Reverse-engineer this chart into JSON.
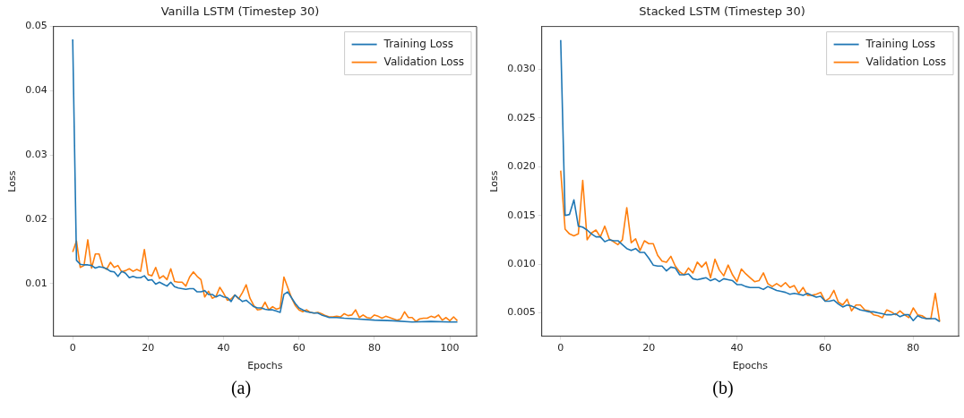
{
  "chart_data": [
    {
      "type": "line",
      "title": "Vanilla LSTM (Timestep 30)",
      "xlabel": "Epochs",
      "ylabel": "Loss",
      "xlim": [
        -5.1,
        107.1
      ],
      "xticks": [
        0,
        20,
        40,
        60,
        80,
        100
      ],
      "ylim": [
        0.0018,
        0.05
      ],
      "yticks": [
        0.01,
        0.02,
        0.03,
        0.04,
        0.05
      ],
      "grid": false,
      "legend": "top right",
      "marker": "none",
      "line_style": "solid",
      "annotations": [
        "(a)"
      ],
      "series": [
        {
          "name": "Training Loss",
          "color": "#1f77b4",
          "x": [
            0,
            1,
            2,
            3,
            4,
            5,
            6,
            7,
            8,
            9,
            10,
            11,
            12,
            13,
            14,
            15,
            16,
            17,
            18,
            19,
            20,
            21,
            22,
            23,
            24,
            25,
            26,
            27,
            28,
            29,
            30,
            31,
            32,
            33,
            34,
            35,
            36,
            37,
            38,
            39,
            40,
            41,
            42,
            43,
            44,
            45,
            46,
            47,
            48,
            49,
            50,
            51,
            52,
            53,
            54,
            55,
            56,
            57,
            58,
            59,
            60,
            61,
            62,
            63,
            64,
            65,
            66,
            67,
            68,
            70,
            72,
            75,
            80,
            85,
            90,
            95,
            100,
            102
          ],
          "values": [
            0.048,
            0.0136,
            0.013,
            0.0129,
            0.0129,
            0.0128,
            0.0124,
            0.0126,
            0.0125,
            0.0123,
            0.0119,
            0.0118,
            0.0111,
            0.0119,
            0.0116,
            0.0109,
            0.0111,
            0.0109,
            0.0109,
            0.0112,
            0.0105,
            0.0106,
            0.0099,
            0.0102,
            0.0099,
            0.0096,
            0.0102,
            0.0095,
            0.0093,
            0.0092,
            0.0091,
            0.0092,
            0.0092,
            0.0087,
            0.0087,
            0.0089,
            0.0083,
            0.0083,
            0.0079,
            0.0082,
            0.0079,
            0.0078,
            0.0072,
            0.0082,
            0.0077,
            0.0072,
            0.0074,
            0.0069,
            0.0064,
            0.0062,
            0.0062,
            0.006,
            0.0059,
            0.0059,
            0.0057,
            0.0055,
            0.0083,
            0.0087,
            0.0078,
            0.0069,
            0.0062,
            0.0059,
            0.0056,
            0.0055,
            0.0054,
            0.0054,
            0.0051,
            0.0049,
            0.0047,
            0.0047,
            0.0046,
            0.0045,
            0.0043,
            0.0042,
            0.004,
            0.0041,
            0.004,
            0.004
          ]
        },
        {
          "name": "Validation Loss",
          "color": "#ff7f0e",
          "x": [
            0,
            1,
            2,
            3,
            4,
            5,
            6,
            7,
            8,
            9,
            10,
            11,
            12,
            13,
            14,
            15,
            16,
            17,
            18,
            19,
            20,
            21,
            22,
            23,
            24,
            25,
            26,
            27,
            28,
            29,
            30,
            31,
            32,
            33,
            34,
            35,
            36,
            37,
            38,
            39,
            40,
            41,
            42,
            43,
            44,
            45,
            46,
            47,
            48,
            49,
            50,
            51,
            52,
            53,
            54,
            55,
            56,
            57,
            58,
            59,
            60,
            61,
            62,
            63,
            64,
            65,
            66,
            67,
            68,
            69,
            70,
            71,
            72,
            73,
            74,
            75,
            76,
            77,
            78,
            79,
            80,
            81,
            82,
            83,
            84,
            85,
            86,
            87,
            88,
            89,
            90,
            91,
            92,
            93,
            94,
            95,
            96,
            97,
            98,
            99,
            100,
            101,
            102
          ],
          "values": [
            0.0149,
            0.0166,
            0.0125,
            0.0128,
            0.0168,
            0.0124,
            0.0146,
            0.0146,
            0.0126,
            0.0122,
            0.0133,
            0.0125,
            0.0128,
            0.0118,
            0.012,
            0.0123,
            0.0119,
            0.0122,
            0.0119,
            0.0153,
            0.0114,
            0.0112,
            0.0125,
            0.0108,
            0.0112,
            0.0106,
            0.0123,
            0.0103,
            0.0102,
            0.0102,
            0.0096,
            0.011,
            0.0118,
            0.0111,
            0.0106,
            0.0079,
            0.0088,
            0.0077,
            0.008,
            0.0094,
            0.0085,
            0.0074,
            0.0076,
            0.0082,
            0.0076,
            0.0086,
            0.0098,
            0.0077,
            0.0066,
            0.0059,
            0.006,
            0.0071,
            0.0059,
            0.0064,
            0.006,
            0.0062,
            0.011,
            0.0094,
            0.0078,
            0.0066,
            0.0059,
            0.0056,
            0.0059,
            0.0055,
            0.0054,
            0.0055,
            0.0053,
            0.005,
            0.0048,
            0.0048,
            0.0049,
            0.0048,
            0.0053,
            0.005,
            0.0051,
            0.0059,
            0.0047,
            0.0051,
            0.0047,
            0.0046,
            0.0051,
            0.0049,
            0.0046,
            0.0049,
            0.0047,
            0.0045,
            0.0043,
            0.0045,
            0.0056,
            0.0047,
            0.0047,
            0.0041,
            0.0045,
            0.0046,
            0.0046,
            0.0049,
            0.0047,
            0.0051,
            0.0043,
            0.0047,
            0.0042,
            0.0048,
            0.0042
          ]
        }
      ]
    },
    {
      "type": "line",
      "title": "Stacked LSTM (Timestep 30)",
      "xlabel": "Epochs",
      "ylabel": "Loss",
      "xlim": [
        -4.3,
        90.3
      ],
      "xticks": [
        0,
        20,
        40,
        60,
        80
      ],
      "ylim": [
        0.0026,
        0.0344
      ],
      "yticks": [
        {
          "value": 0.005,
          "label": "0.005"
        },
        {
          "value": 0.01,
          "label": "0.010"
        },
        {
          "value": 0.015,
          "label": "0.015"
        },
        {
          "value": 0.02,
          "label": "0.020"
        },
        {
          "value": 0.025,
          "label": "0.025"
        },
        {
          "value": 0.03,
          "label": "0.030"
        }
      ],
      "grid": false,
      "legend": "top right",
      "marker": "none",
      "line_style": "solid",
      "annotations": [
        "(b)"
      ],
      "series": [
        {
          "name": "Training Loss",
          "color": "#1f77b4",
          "x": [
            0,
            1,
            2,
            3,
            4,
            5,
            6,
            7,
            8,
            9,
            10,
            11,
            12,
            13,
            14,
            15,
            16,
            17,
            18,
            19,
            20,
            21,
            22,
            23,
            24,
            25,
            26,
            27,
            28,
            29,
            30,
            31,
            32,
            33,
            34,
            35,
            36,
            37,
            38,
            39,
            40,
            41,
            42,
            43,
            44,
            45,
            46,
            47,
            48,
            49,
            50,
            51,
            52,
            53,
            54,
            55,
            56,
            57,
            58,
            59,
            60,
            61,
            62,
            63,
            64,
            65,
            66,
            67,
            68,
            69,
            70,
            71,
            72,
            73,
            74,
            75,
            76,
            77,
            78,
            79,
            80,
            81,
            82,
            83,
            84,
            85,
            86
          ],
          "values": [
            0.033,
            0.015,
            0.0151,
            0.0166,
            0.0139,
            0.0138,
            0.0135,
            0.0131,
            0.0128,
            0.0128,
            0.0123,
            0.0125,
            0.0124,
            0.0124,
            0.012,
            0.0116,
            0.0114,
            0.0116,
            0.0112,
            0.0112,
            0.0106,
            0.0099,
            0.0098,
            0.0098,
            0.0093,
            0.0097,
            0.0096,
            0.0089,
            0.0089,
            0.009,
            0.0085,
            0.0084,
            0.0085,
            0.0086,
            0.0083,
            0.0085,
            0.0082,
            0.0085,
            0.0084,
            0.0083,
            0.0079,
            0.0079,
            0.0077,
            0.0076,
            0.0076,
            0.0076,
            0.0074,
            0.0077,
            0.0075,
            0.0073,
            0.0072,
            0.0071,
            0.0069,
            0.007,
            0.0069,
            0.0068,
            0.007,
            0.0068,
            0.0066,
            0.0067,
            0.0062,
            0.0062,
            0.0063,
            0.0059,
            0.0056,
            0.0058,
            0.0057,
            0.0055,
            0.0053,
            0.0052,
            0.0051,
            0.0051,
            0.005,
            0.0049,
            0.0048,
            0.0048,
            0.0049,
            0.0046,
            0.0048,
            0.0048,
            0.0042,
            0.0047,
            0.0045,
            0.0044,
            0.0044,
            0.0044,
            0.0041
          ]
        },
        {
          "name": "Validation Loss",
          "color": "#ff7f0e",
          "x": [
            0,
            1,
            2,
            3,
            4,
            5,
            6,
            7,
            8,
            9,
            10,
            11,
            12,
            13,
            14,
            15,
            16,
            17,
            18,
            19,
            20,
            21,
            22,
            23,
            24,
            25,
            26,
            27,
            28,
            29,
            30,
            31,
            32,
            33,
            34,
            35,
            36,
            37,
            38,
            39,
            40,
            41,
            42,
            43,
            44,
            45,
            46,
            47,
            48,
            49,
            50,
            51,
            52,
            53,
            54,
            55,
            56,
            57,
            58,
            59,
            60,
            61,
            62,
            63,
            64,
            65,
            66,
            67,
            68,
            69,
            70,
            71,
            72,
            73,
            74,
            75,
            76,
            77,
            78,
            79,
            80,
            81,
            82,
            83,
            84,
            85,
            86
          ],
          "values": [
            0.0196,
            0.0136,
            0.0131,
            0.0129,
            0.0131,
            0.0186,
            0.0125,
            0.0132,
            0.0135,
            0.0128,
            0.0139,
            0.0126,
            0.0123,
            0.012,
            0.0125,
            0.0158,
            0.0122,
            0.0126,
            0.0114,
            0.0124,
            0.0121,
            0.0121,
            0.0109,
            0.0103,
            0.0102,
            0.0108,
            0.0098,
            0.0092,
            0.0089,
            0.0096,
            0.0091,
            0.0102,
            0.0097,
            0.0102,
            0.0086,
            0.0105,
            0.0094,
            0.0088,
            0.0099,
            0.0089,
            0.0082,
            0.0095,
            0.009,
            0.0086,
            0.0082,
            0.0083,
            0.0091,
            0.008,
            0.0077,
            0.008,
            0.0077,
            0.0081,
            0.0076,
            0.0078,
            0.007,
            0.0076,
            0.0068,
            0.0068,
            0.0069,
            0.0071,
            0.0062,
            0.0065,
            0.0073,
            0.0061,
            0.0058,
            0.0064,
            0.0052,
            0.0058,
            0.0058,
            0.0053,
            0.0052,
            0.0048,
            0.0047,
            0.0045,
            0.0053,
            0.0051,
            0.0048,
            0.0052,
            0.0048,
            0.0045,
            0.0055,
            0.0048,
            0.0047,
            0.0044,
            0.0044,
            0.007,
            0.0041
          ]
        }
      ]
    }
  ]
}
